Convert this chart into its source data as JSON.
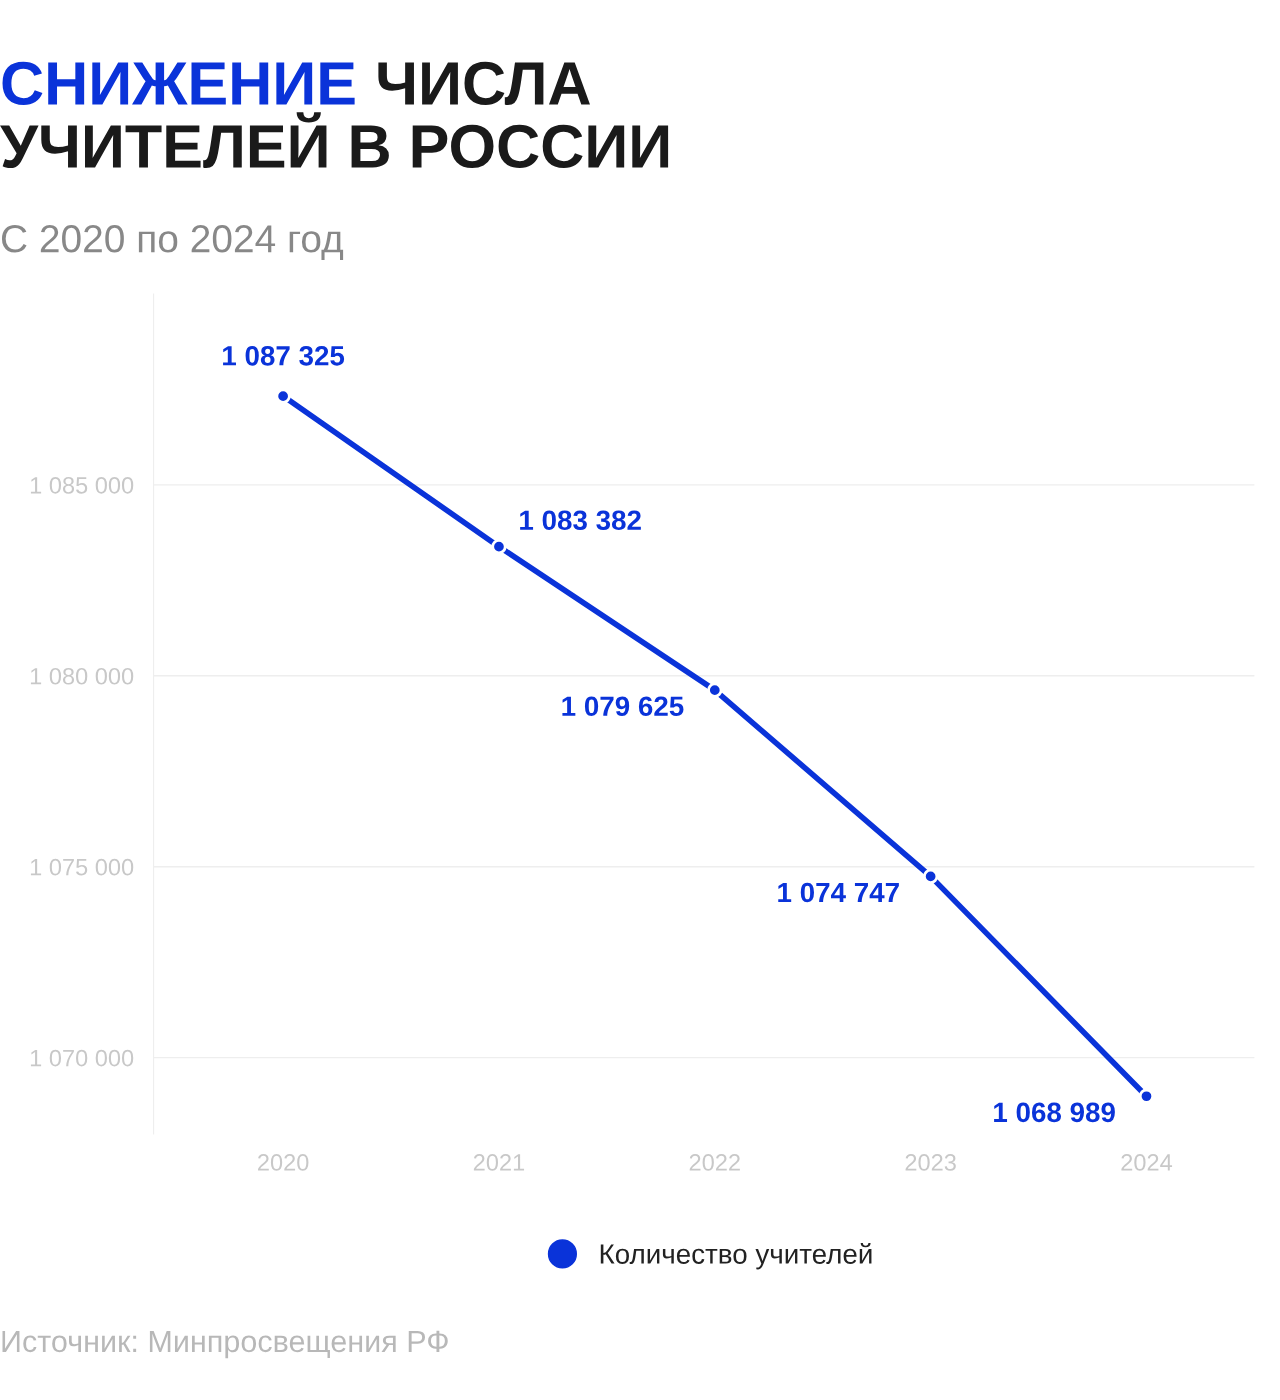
{
  "chart_data": {
    "type": "line",
    "title": "СНИЖЕНИЕ ЧИСЛА\nУЧИТЕЛЕЙ В РОССИИ",
    "subtitle": "С 2020 по 2024 год",
    "categories": [
      "2020",
      "2021",
      "2022",
      "2023",
      "2024"
    ],
    "series": [
      {
        "name": "Количество учителей",
        "color": "#0a33d9",
        "values": [
          1087325,
          1083382,
          1079625,
          1074747,
          1068989
        ]
      }
    ],
    "ylim": [
      1068000,
      1090000
    ],
    "yticks": [
      {
        "value": 1070000,
        "label": "1 070 000"
      },
      {
        "value": 1075000,
        "label": "1 075 000"
      },
      {
        "value": 1080000,
        "label": "1 080 000"
      },
      {
        "value": 1085000,
        "label": "1 085 000"
      }
    ],
    "grid": "y",
    "legend": "bottom",
    "marker": "circle",
    "line_style": "solid",
    "value_labels": [
      "1 087 325",
      "1 083 382",
      "1 079 625",
      "1 074 747",
      "1 068 989"
    ],
    "annotations": [
      "Источник: Минпросвещения РФ"
    ]
  }
}
